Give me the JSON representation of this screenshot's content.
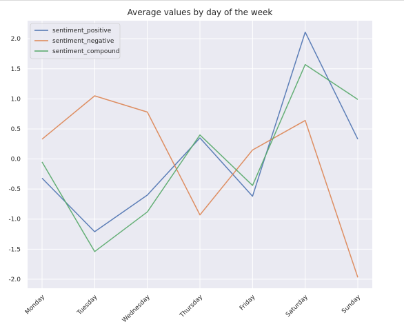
{
  "colors": {
    "plot_background": "#eaeaf2",
    "grid": "#ffffff",
    "text": "#262626"
  },
  "chart_data": {
    "type": "line",
    "title": "Average values by day of the week",
    "xlabel": "",
    "ylabel": "",
    "categories": [
      "Monday",
      "Tuesday",
      "Wednesday",
      "Thursday",
      "Friday",
      "Saturday",
      "Sunday"
    ],
    "ylim": [
      -2.15,
      2.3
    ],
    "yticks": [
      "2.0",
      "1.5",
      "1.0",
      "0.5",
      "0.0",
      "-0.5",
      "-1.0",
      "-1.5",
      "-2.0"
    ],
    "ytick_values": [
      2.0,
      1.5,
      1.0,
      0.5,
      0.0,
      -0.5,
      -1.0,
      -1.5,
      -2.0
    ],
    "grid": true,
    "legend_position": "top-left",
    "series": [
      {
        "name": "sentiment_positive",
        "color": "#4c72b0",
        "values": [
          -0.32,
          -1.21,
          -0.6,
          0.35,
          -0.62,
          2.11,
          0.33
        ]
      },
      {
        "name": "sentiment_negative",
        "color": "#dd8452",
        "values": [
          0.33,
          1.05,
          0.78,
          -0.93,
          0.15,
          0.64,
          -1.97
        ]
      },
      {
        "name": "sentiment_compound",
        "color": "#55a868",
        "values": [
          -0.05,
          -1.54,
          -0.88,
          0.4,
          -0.44,
          1.57,
          0.99
        ]
      }
    ]
  }
}
